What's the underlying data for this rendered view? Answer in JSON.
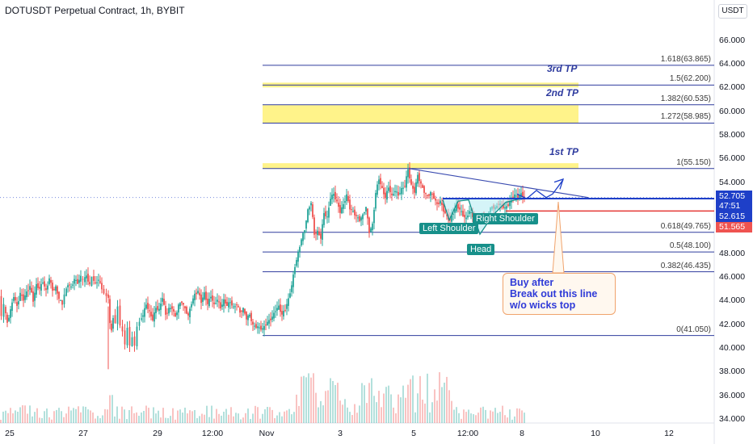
{
  "header": {
    "title": "DOTUSDT Perpetual Contract, 1h, BYBIT",
    "currency": "USDT"
  },
  "price_axis": {
    "ticks": [
      "66.000",
      "64.000",
      "62.000",
      "60.000",
      "58.000",
      "56.000",
      "54.000",
      "48.000",
      "46.000",
      "44.000",
      "42.000",
      "40.000",
      "38.000",
      "36.000",
      "34.000"
    ]
  },
  "time_axis": {
    "ticks": [
      "25",
      "27",
      "29",
      "12:00",
      "Nov",
      "3",
      "5",
      "12:00",
      "8",
      "10",
      "12"
    ]
  },
  "price_boxes": {
    "last_price": "52.705",
    "countdown": "47:51",
    "level_blue": "52.615",
    "level_red": "51.565"
  },
  "fib_levels": [
    {
      "label": "1.618(63.865)",
      "value": 63.865
    },
    {
      "label": "1.5(62.200)",
      "value": 62.2
    },
    {
      "label": "1.382(60.535)",
      "value": 60.535
    },
    {
      "label": "1.272(58.985)",
      "value": 58.985
    },
    {
      "label": "1(55.150)",
      "value": 55.15
    },
    {
      "label": "0.618(49.765)",
      "value": 49.765
    },
    {
      "label": "0.5(48.100)",
      "value": 48.1
    },
    {
      "label": "0.382(46.435)",
      "value": 46.435
    },
    {
      "label": "0(41.050)",
      "value": 41.05
    }
  ],
  "targets": {
    "tp3": "3rd TP",
    "tp2": "2nd TP",
    "tp1": "1st TP"
  },
  "pattern_labels": {
    "left_shoulder": "Left Shoulder",
    "right_shoulder": "Right Shoulder",
    "head": "Head"
  },
  "callout": {
    "line1": "Buy after",
    "line2": "Break out this line",
    "line3": "w/o wicks top"
  },
  "colors": {
    "up": "#26a69a",
    "down": "#ef5350",
    "fib_line": "#2f3c9e",
    "target_zone": "#fff176",
    "neckline": "#1e3fc8",
    "stop_line": "#e53935",
    "pattern_fill": "#b2ebf2",
    "pattern_label": "#17908a"
  },
  "chart_data": {
    "type": "candlestick",
    "symbol": "DOTUSDT",
    "interval": "1h",
    "exchange": "BYBIT",
    "y_range": [
      33.5,
      67.0
    ],
    "x_labels": [
      "25",
      "27",
      "29",
      "12:00",
      "Nov",
      "3",
      "5",
      "12:00",
      "8",
      "10",
      "12"
    ],
    "last_price": 52.705,
    "levels": {
      "resistance": 52.615,
      "stop": 51.565
    },
    "target_zones": [
      {
        "label": "3rd TP",
        "low": 62.0,
        "high": 62.4
      },
      {
        "label": "2nd TP",
        "low": 59.0,
        "high": 60.5
      },
      {
        "label": "1st TP",
        "low": 55.15,
        "high": 55.6
      }
    ],
    "price_path": [
      [
        0,
        44.2
      ],
      [
        3,
        42.8
      ],
      [
        6,
        43.6
      ],
      [
        10,
        42.1
      ],
      [
        14,
        43.2
      ],
      [
        18,
        44.4
      ],
      [
        22,
        43.5
      ],
      [
        26,
        44.6
      ],
      [
        30,
        44.1
      ],
      [
        34,
        44.7
      ],
      [
        38,
        45.2
      ],
      [
        42,
        44.0
      ],
      [
        46,
        45.3
      ],
      [
        50,
        45.0
      ],
      [
        54,
        45.6
      ],
      [
        58,
        44.8
      ],
      [
        62,
        45.9
      ],
      [
        66,
        44.9
      ],
      [
        70,
        45.1
      ],
      [
        74,
        44.2
      ],
      [
        78,
        43.7
      ],
      [
        81,
        44.5
      ],
      [
        85,
        45.4
      ],
      [
        89,
        45.1
      ],
      [
        93,
        45.8
      ],
      [
        97,
        45.5
      ],
      [
        101,
        46.0
      ],
      [
        104,
        45.7
      ],
      [
        108,
        46.1
      ],
      [
        112,
        45.3
      ],
      [
        115,
        46.0
      ],
      [
        119,
        45.4
      ],
      [
        123,
        45.8
      ],
      [
        127,
        45.0
      ],
      [
        130,
        44.6
      ],
      [
        133,
        44.4
      ],
      [
        135,
        44.3
      ],
      [
        137,
        42.0
      ],
      [
        139,
        41.5
      ],
      [
        141,
        42.6
      ],
      [
        144,
        42.2
      ],
      [
        147,
        43.4
      ],
      [
        150,
        42.0
      ],
      [
        153,
        41.3
      ],
      [
        156,
        40.4
      ],
      [
        159,
        41.6
      ],
      [
        162,
        40.3
      ],
      [
        165,
        40.8
      ],
      [
        168,
        40.3
      ],
      [
        171,
        41.7
      ],
      [
        174,
        42.3
      ],
      [
        178,
        42.8
      ],
      [
        182,
        43.7
      ],
      [
        186,
        43.0
      ],
      [
        190,
        42.4
      ],
      [
        194,
        43.4
      ],
      [
        198,
        43.2
      ],
      [
        202,
        44.3
      ],
      [
        206,
        42.8
      ],
      [
        210,
        43.3
      ],
      [
        214,
        43.4
      ],
      [
        218,
        42.6
      ],
      [
        222,
        43.6
      ],
      [
        226,
        43.9
      ],
      [
        230,
        43.3
      ],
      [
        234,
        42.7
      ],
      [
        238,
        43.8
      ],
      [
        242,
        44.5
      ],
      [
        246,
        44.8
      ],
      [
        250,
        43.9
      ],
      [
        254,
        44.6
      ],
      [
        258,
        43.7
      ],
      [
        262,
        44.4
      ],
      [
        266,
        43.6
      ],
      [
        270,
        44.1
      ],
      [
        274,
        43.4
      ],
      [
        278,
        44.0
      ],
      [
        282,
        43.6
      ],
      [
        286,
        43.9
      ],
      [
        290,
        43.4
      ],
      [
        294,
        43.7
      ],
      [
        298,
        43.0
      ],
      [
        302,
        43.3
      ],
      [
        306,
        42.5
      ],
      [
        310,
        42.8
      ],
      [
        314,
        41.9
      ],
      [
        318,
        41.8
      ],
      [
        322,
        41.7
      ],
      [
        326,
        41.6
      ],
      [
        330,
        42.0
      ],
      [
        334,
        42.3
      ],
      [
        338,
        42.6
      ],
      [
        342,
        43.2
      ],
      [
        346,
        43.5
      ],
      [
        350,
        42.8
      ],
      [
        354,
        43.3
      ],
      [
        358,
        44.1
      ],
      [
        362,
        45.3
      ],
      [
        366,
        46.9
      ],
      [
        370,
        48.0
      ],
      [
        374,
        49.2
      ],
      [
        378,
        50.0
      ],
      [
        382,
        51.6
      ],
      [
        386,
        52.3
      ],
      [
        390,
        49.6
      ],
      [
        394,
        49.8
      ],
      [
        398,
        49.3
      ],
      [
        402,
        51.4
      ],
      [
        406,
        51.0
      ],
      [
        410,
        52.7
      ],
      [
        414,
        53.0
      ],
      [
        418,
        52.3
      ],
      [
        422,
        51.5
      ],
      [
        426,
        52.1
      ],
      [
        430,
        52.9
      ],
      [
        434,
        51.8
      ],
      [
        438,
        51.5
      ],
      [
        442,
        51.1
      ],
      [
        446,
        50.8
      ],
      [
        450,
        51.2
      ],
      [
        454,
        51.9
      ],
      [
        458,
        49.8
      ],
      [
        462,
        50.4
      ],
      [
        466,
        53.1
      ],
      [
        470,
        54.3
      ],
      [
        474,
        53.4
      ],
      [
        478,
        52.7
      ],
      [
        482,
        53.6
      ],
      [
        486,
        52.8
      ],
      [
        490,
        53.3
      ],
      [
        494,
        52.9
      ],
      [
        498,
        53.4
      ],
      [
        502,
        53.7
      ],
      [
        506,
        55.1
      ],
      [
        510,
        53.7
      ],
      [
        514,
        53.2
      ],
      [
        518,
        54.6
      ],
      [
        522,
        53.8
      ],
      [
        526,
        53.2
      ],
      [
        530,
        52.8
      ],
      [
        534,
        53.1
      ],
      [
        538,
        52.7
      ],
      [
        542,
        52.1
      ],
      [
        546,
        52.4
      ],
      [
        550,
        51.6
      ],
      [
        554,
        51.1
      ],
      [
        558,
        50.8
      ],
      [
        562,
        51.4
      ],
      [
        566,
        52.0
      ],
      [
        570,
        51.7
      ],
      [
        574,
        51.2
      ],
      [
        578,
        50.9
      ],
      [
        582,
        51.6
      ],
      [
        586,
        51.1
      ],
      [
        590,
        50.4
      ],
      [
        594,
        50.8
      ],
      [
        598,
        51.3
      ],
      [
        602,
        51.0
      ],
      [
        606,
        51.6
      ],
      [
        610,
        51.9
      ],
      [
        614,
        51.8
      ],
      [
        618,
        52.2
      ],
      [
        622,
        52.0
      ],
      [
        626,
        51.8
      ],
      [
        630,
        52.1
      ],
      [
        634,
        52.6
      ],
      [
        638,
        52.9
      ],
      [
        642,
        52.7
      ],
      [
        646,
        53.0
      ],
      [
        650,
        52.7
      ]
    ],
    "volume_note": "volume histogram at bottom"
  }
}
